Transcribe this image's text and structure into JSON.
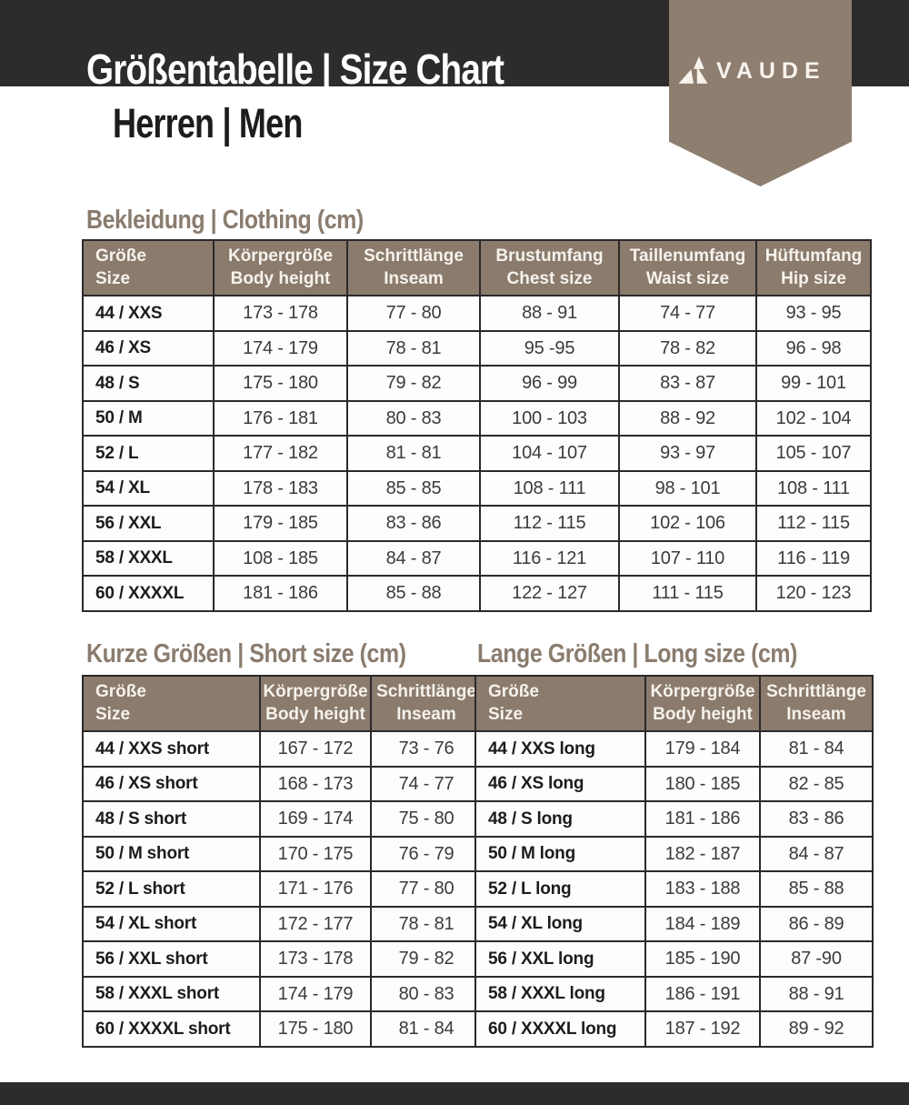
{
  "header": {
    "title": "Größentabelle | Size Chart",
    "subtitle": "Herren | Men",
    "brand": "VAUDE",
    "logo_icon": "vaude-triple-peak-icon"
  },
  "colors": {
    "bar_black": "#2d2b2b",
    "taupe_header": "#8a7b6d",
    "taupe_ribbon": "#8d7e70",
    "heading_text": "#8a7c6e"
  },
  "sections": {
    "clothing": {
      "heading": "Bekleidung | Clothing (cm)",
      "columns": [
        {
          "de": "Größe",
          "en": "Size"
        },
        {
          "de": "Körpergröße",
          "en": "Body height"
        },
        {
          "de": "Schrittlänge",
          "en": "Inseam"
        },
        {
          "de": "Brustumfang",
          "en": "Chest size"
        },
        {
          "de": "Taillenumfang",
          "en": "Waist size"
        },
        {
          "de": "Hüftumfang",
          "en": "Hip size"
        }
      ],
      "rows": [
        [
          "44 / XXS",
          "173 - 178",
          "77 - 80",
          "88 - 91",
          "74 - 77",
          "93 - 95"
        ],
        [
          "46 / XS",
          "174 - 179",
          "78 - 81",
          "95 -95",
          "78 - 82",
          "96 - 98"
        ],
        [
          "48 / S",
          "175 - 180",
          "79 - 82",
          "96 - 99",
          "83 - 87",
          "99 - 101"
        ],
        [
          "50 / M",
          "176 - 181",
          "80 - 83",
          "100 - 103",
          "88 - 92",
          "102 - 104"
        ],
        [
          "52 / L",
          "177 - 182",
          "81 - 81",
          "104 - 107",
          "93 - 97",
          "105 - 107"
        ],
        [
          "54 / XL",
          "178 - 183",
          "85 - 85",
          "108 - 111",
          "98 - 101",
          "108 - 111"
        ],
        [
          "56 / XXL",
          "179 - 185",
          "83 - 86",
          "112 - 115",
          "102 - 106",
          "112 - 115"
        ],
        [
          "58 / XXXL",
          "108 - 185",
          "84 - 87",
          "116 - 121",
          "107 - 110",
          "116 - 119"
        ],
        [
          "60 / XXXXL",
          "181 - 186",
          "85 - 88",
          "122 - 127",
          "111 - 115",
          "120 - 123"
        ]
      ]
    },
    "short": {
      "heading": "Kurze Größen | Short size (cm)",
      "columns": [
        {
          "de": "Größe",
          "en": "Size"
        },
        {
          "de": "Körpergröße",
          "en": "Body height"
        },
        {
          "de": "Schrittlänge",
          "en": "Inseam"
        }
      ],
      "rows": [
        [
          "44 / XXS short",
          "167 - 172",
          "73 - 76"
        ],
        [
          "46 / XS short",
          "168 - 173",
          "74 - 77"
        ],
        [
          "48 / S short",
          "169 - 174",
          "75 - 80"
        ],
        [
          "50 / M short",
          "170 - 175",
          "76 - 79"
        ],
        [
          "52 / L short",
          "171 - 176",
          "77 - 80"
        ],
        [
          "54 / XL short",
          "172 - 177",
          "78 - 81"
        ],
        [
          "56 / XXL short",
          "173 - 178",
          "79 - 82"
        ],
        [
          "58 / XXXL short",
          "174 - 179",
          "80 - 83"
        ],
        [
          "60 / XXXXL short",
          "175 - 180",
          "81 - 84"
        ]
      ]
    },
    "long": {
      "heading": "Lange Größen | Long size (cm)",
      "columns": [
        {
          "de": "Größe",
          "en": "Size"
        },
        {
          "de": "Körpergröße",
          "en": "Body height"
        },
        {
          "de": "Schrittlänge",
          "en": "Inseam"
        }
      ],
      "rows": [
        [
          "44 / XXS long",
          "179 - 184",
          "81 - 84"
        ],
        [
          "46 / XS long",
          "180 - 185",
          "82 - 85"
        ],
        [
          "48 / S long",
          "181 - 186",
          "83 - 86"
        ],
        [
          "50 / M long",
          "182 - 187",
          "84 - 87"
        ],
        [
          "52 / L long",
          "183 - 188",
          "85 - 88"
        ],
        [
          "54 / XL long",
          "184 - 189",
          "86 - 89"
        ],
        [
          "56 / XXL long",
          "185 - 190",
          "87 -90"
        ],
        [
          "58 / XXXL long",
          "186 - 191",
          "88 - 91"
        ],
        [
          "60 / XXXXL long",
          "187 - 192",
          "89 - 92"
        ]
      ]
    }
  }
}
